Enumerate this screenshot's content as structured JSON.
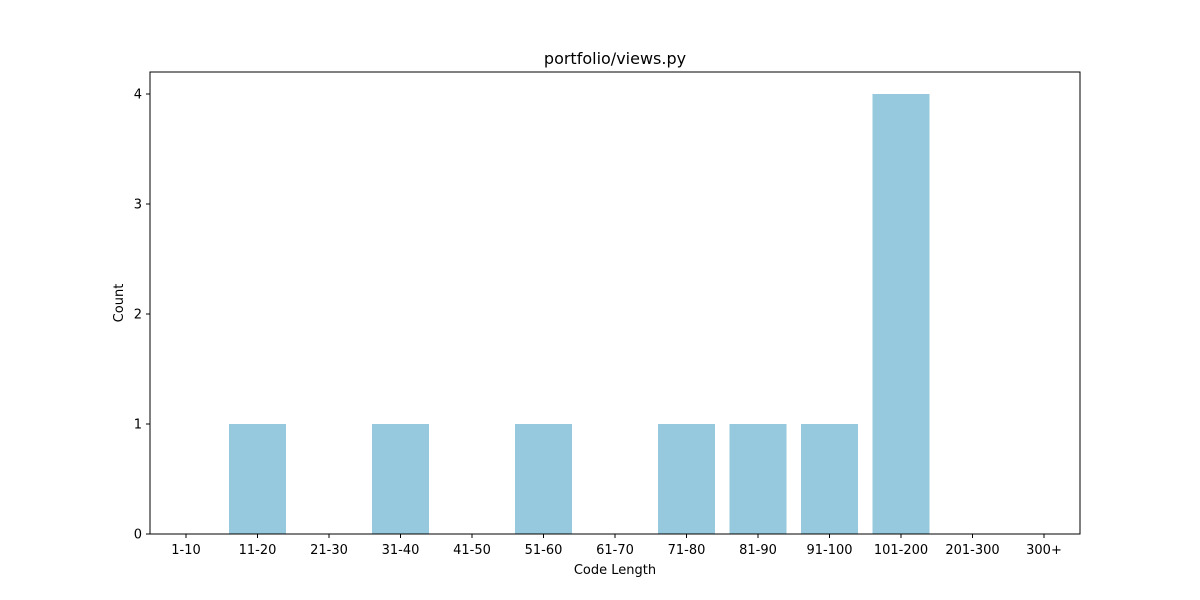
{
  "chart_data": {
    "type": "bar",
    "title": "portfolio/views.py",
    "xlabel": "Code Length",
    "ylabel": "Count",
    "categories": [
      "1-10",
      "11-20",
      "21-30",
      "31-40",
      "41-50",
      "51-60",
      "61-70",
      "71-80",
      "81-90",
      "91-100",
      "101-200",
      "201-300",
      "300+"
    ],
    "values": [
      0,
      1,
      0,
      1,
      0,
      1,
      0,
      1,
      1,
      1,
      4,
      0,
      0
    ],
    "ylim": [
      0,
      4.2
    ],
    "yticks": [
      0,
      1,
      2,
      3,
      4
    ],
    "bar_color": "#96c9dd",
    "grid": false,
    "legend": "none"
  }
}
